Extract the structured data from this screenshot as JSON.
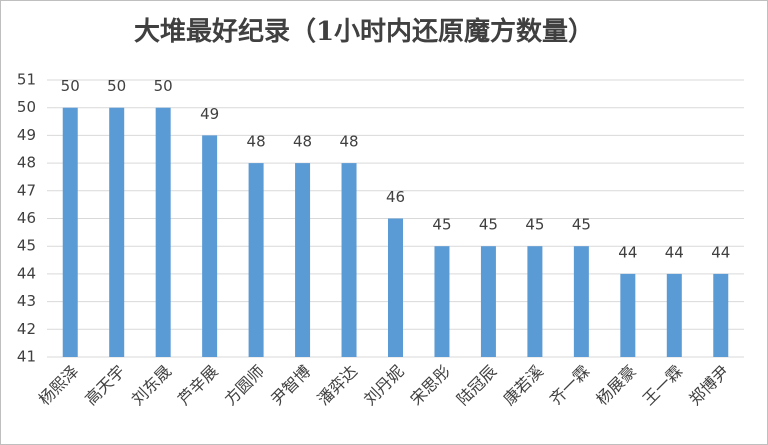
{
  "chart_data": {
    "type": "bar",
    "title": "大堆最好纪录（1小时内还原魔方数量）",
    "categories": [
      "杨熙泽",
      "高天宇",
      "刘东晟",
      "芦辛展",
      "方圆师",
      "尹智博",
      "潘弈达",
      "刘丹妮",
      "宋思彤",
      "陆冠辰",
      "康若溪",
      "齐一霖",
      "杨展豪",
      "王一霖",
      "郑博尹"
    ],
    "values": [
      50,
      50,
      50,
      49,
      48,
      48,
      48,
      46,
      45,
      45,
      45,
      45,
      44,
      44,
      44
    ],
    "color": "#5b9bd5",
    "ylim": [
      41,
      51
    ],
    "yticks": [
      41,
      42,
      43,
      44,
      45,
      46,
      47,
      48,
      49,
      50,
      51
    ],
    "grid": true
  }
}
